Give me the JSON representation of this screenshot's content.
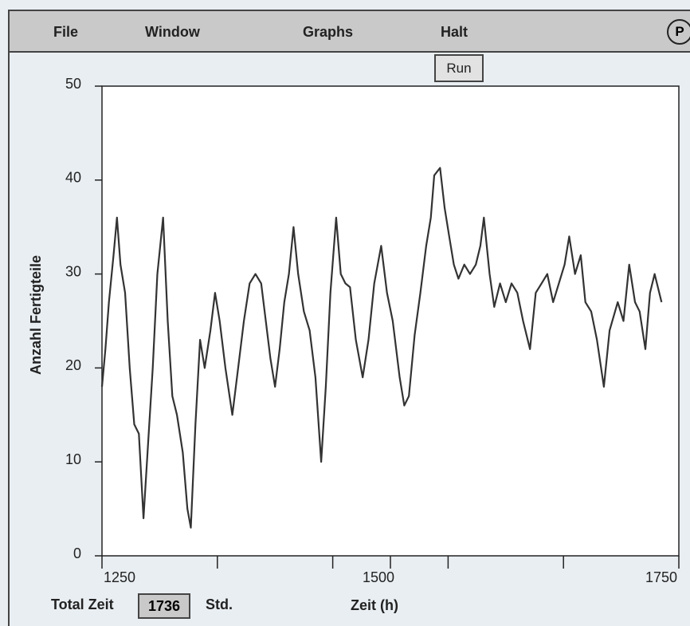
{
  "menu": {
    "items": [
      "File",
      "Window",
      "Graphs",
      "Halt"
    ],
    "badge": "P"
  },
  "run_button": "Run",
  "chart_data": {
    "type": "line",
    "ylabel": "Anzahl Fertigteile",
    "xlabel": "Zeit (h)",
    "xlim": [
      1250,
      1750
    ],
    "xticks": [
      1250,
      1500,
      1750
    ],
    "xminor_ticks": [
      1350,
      1450,
      1550,
      1650
    ],
    "ylim": [
      0,
      50
    ],
    "yticks": [
      0,
      10,
      20,
      30,
      40,
      50
    ],
    "color": "#333333",
    "x": [
      1250,
      1253,
      1256,
      1260,
      1263,
      1266,
      1270,
      1274,
      1278,
      1282,
      1286,
      1290,
      1294,
      1298,
      1303,
      1307,
      1311,
      1315,
      1320,
      1324,
      1327,
      1331,
      1335,
      1339,
      1344,
      1348,
      1352,
      1357,
      1363,
      1368,
      1373,
      1378,
      1383,
      1388,
      1392,
      1396,
      1400,
      1404,
      1408,
      1412,
      1416,
      1420,
      1425,
      1430,
      1435,
      1440,
      1444,
      1448,
      1453,
      1457,
      1461,
      1465,
      1470,
      1476,
      1481,
      1486,
      1492,
      1497,
      1502,
      1508,
      1512,
      1516,
      1521,
      1526,
      1531,
      1535,
      1538,
      1543,
      1547,
      1551,
      1555,
      1559,
      1564,
      1569,
      1574,
      1578,
      1581,
      1586,
      1590,
      1595,
      1600,
      1605,
      1610,
      1615,
      1621,
      1626,
      1631,
      1636,
      1641,
      1646,
      1651,
      1655,
      1660,
      1665,
      1669,
      1674,
      1679,
      1685,
      1690,
      1697,
      1702,
      1707,
      1712,
      1716,
      1721,
      1725,
      1729,
      1735
    ],
    "values": [
      18,
      22,
      27,
      32,
      36,
      31,
      28,
      20,
      14,
      13,
      4,
      12,
      20,
      30,
      36,
      25,
      17,
      15,
      11,
      5,
      3,
      14,
      23,
      20,
      24,
      28,
      25,
      20,
      15,
      20,
      25,
      29,
      30,
      29,
      25,
      21,
      18,
      22,
      27,
      30,
      35,
      30,
      26,
      24,
      19,
      10,
      18,
      28,
      36,
      30,
      29,
      28.6,
      23,
      19,
      23,
      29,
      33,
      28,
      25,
      19,
      16,
      17,
      23.5,
      28,
      33,
      36,
      40.5,
      41.3,
      37,
      34,
      31,
      29.5,
      31,
      30,
      31,
      33,
      36,
      30,
      26.5,
      29,
      27,
      29,
      28,
      25,
      22,
      28,
      29,
      30,
      27,
      29,
      31,
      34,
      30,
      32,
      27,
      26,
      23,
      18,
      24,
      27,
      25,
      31,
      27,
      26,
      22,
      28,
      30,
      27
    ]
  },
  "footer": {
    "label": "Total Zeit",
    "value": 1736,
    "unit": "Std."
  }
}
